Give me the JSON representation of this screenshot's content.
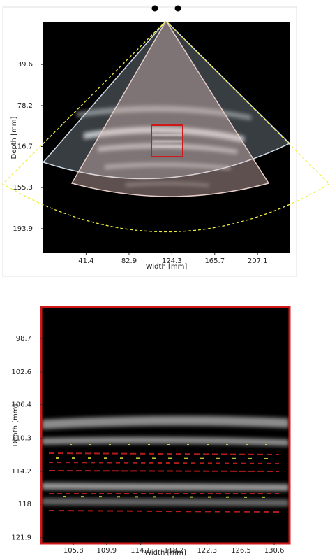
{
  "chart_data": [
    {
      "type": "image",
      "xlabel": "Width [mm]",
      "ylabel": "Depth [mm]",
      "xlim": [
        0,
        238
      ],
      "ylim": [
        0,
        217
      ],
      "y_inverted": true,
      "xticks": [
        41.4,
        82.9,
        124.3,
        165.7,
        207.1
      ],
      "yticks": [
        39.6,
        78.2,
        116.7,
        155.3,
        193.9
      ],
      "grid": false
    },
    {
      "type": "image",
      "xlabel": "Width [mm]",
      "ylabel": "Depth [mm]",
      "xlim": [
        101.9,
        132.4
      ],
      "ylim": [
        95.1,
        122.5
      ],
      "y_inverted": true,
      "xticks": [
        105.8,
        109.9,
        114.1,
        118.2,
        122.3,
        126.5,
        130.6
      ],
      "yticks": [
        98.7,
        102.6,
        106.4,
        110.3,
        114.2,
        118,
        121.9
      ],
      "grid": false
    }
  ]
}
